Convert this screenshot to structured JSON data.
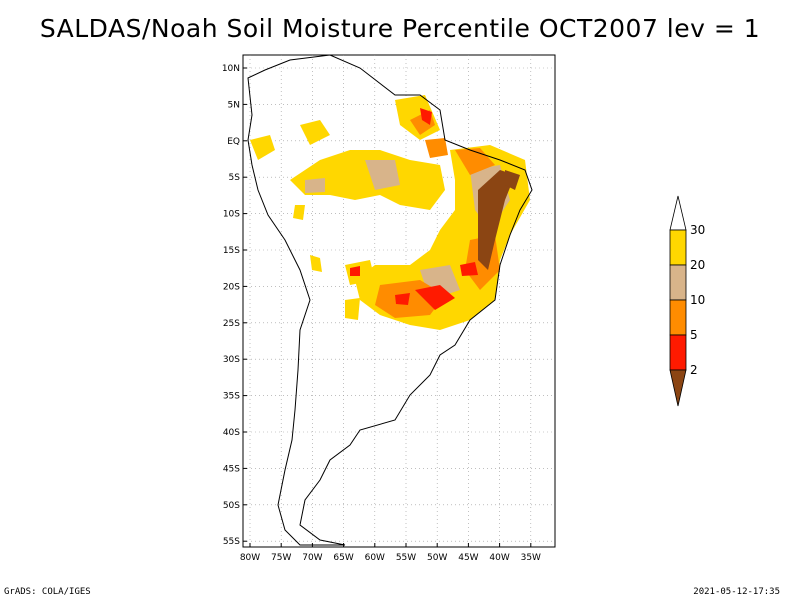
{
  "title": "SALDAS/Noah Soil Moisture Percentile OCT2007 lev = 1",
  "lat_ticks": [
    "10N",
    "5N",
    "EQ",
    "5S",
    "10S",
    "15S",
    "20S",
    "25S",
    "30S",
    "35S",
    "40S",
    "45S",
    "50S",
    "55S"
  ],
  "lon_ticks": [
    "80W",
    "75W",
    "70W",
    "65W",
    "60W",
    "55W",
    "50W",
    "45W",
    "40W",
    "35W"
  ],
  "legend": {
    "labels": [
      "30",
      "20",
      "10",
      "5",
      "2"
    ],
    "colors": {
      "top_arrow": "#ffffff",
      "band_20_30": "#ffd700",
      "band_10_20": "#d8b48a",
      "band_5_10": "#ff8c00",
      "band_2_5": "#ff1a00",
      "bottom_arrow": "#8b4513"
    }
  },
  "footer": {
    "left": "GrADS: COLA/IGES",
    "right": "2021-05-12-17:35"
  }
}
